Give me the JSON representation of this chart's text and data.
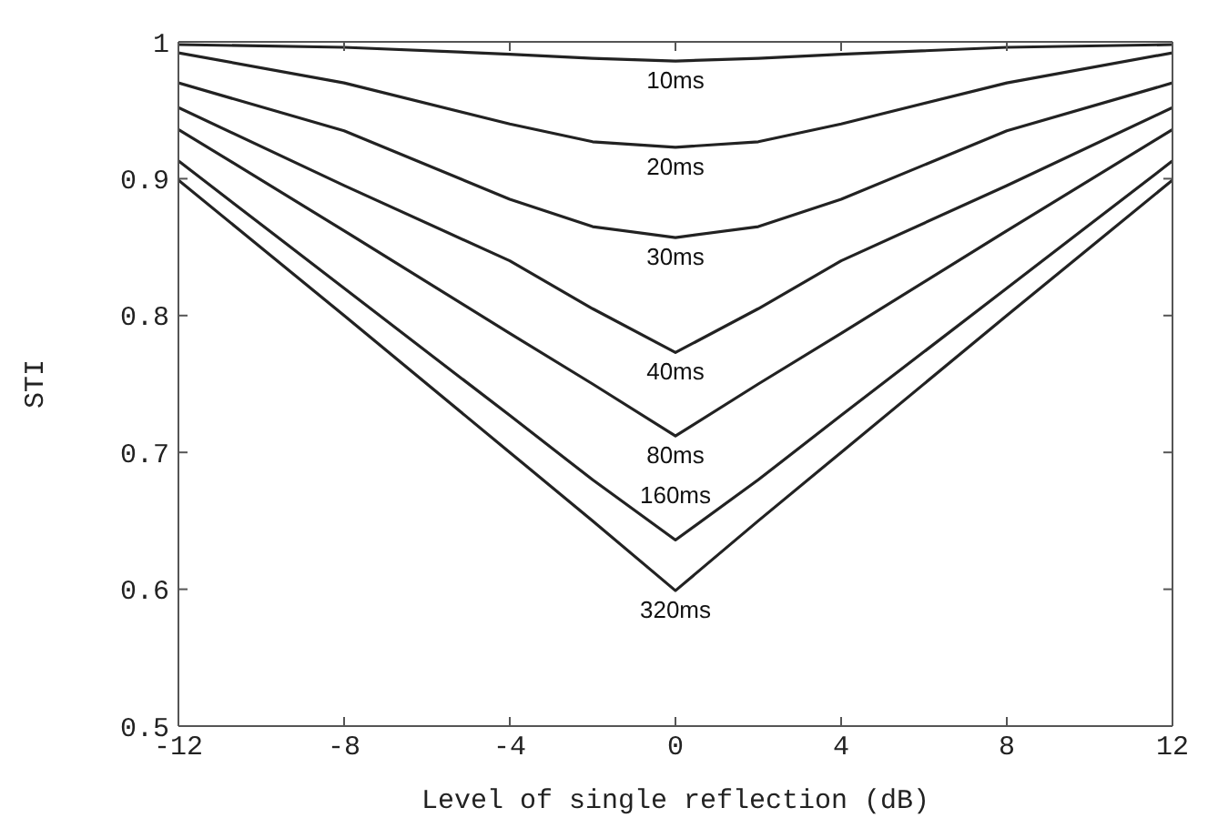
{
  "chart_data": {
    "type": "line",
    "xlabel": "Level of single reflection (dB)",
    "ylabel": "STI",
    "x": [
      -12,
      -8,
      -4,
      -2,
      0,
      2,
      4,
      8,
      12
    ],
    "xlim": [
      -12,
      12
    ],
    "xticks": [
      -12,
      -8,
      -4,
      0,
      4,
      8,
      12
    ],
    "ylim": [
      0.5,
      1
    ],
    "yticks": [
      {
        "value": 0.5,
        "label": "0.5"
      },
      {
        "value": 0.6,
        "label": "0.6"
      },
      {
        "value": 0.7,
        "label": "0.7"
      },
      {
        "value": 0.8,
        "label": "0.8"
      },
      {
        "value": 0.9,
        "label": "0.9"
      },
      {
        "value": 1,
        "label": "1"
      }
    ],
    "grid": false,
    "legend": false,
    "marker": "none",
    "line_style": "solid",
    "series": [
      {
        "name": "10ms",
        "color": "#222222",
        "values": [
          0.998,
          0.996,
          0.991,
          0.988,
          0.986,
          0.988,
          0.991,
          0.996,
          0.998
        ]
      },
      {
        "name": "20ms",
        "color": "#222222",
        "values": [
          0.992,
          0.97,
          0.94,
          0.927,
          0.923,
          0.927,
          0.94,
          0.97,
          0.992
        ]
      },
      {
        "name": "30ms",
        "color": "#222222",
        "values": [
          0.97,
          0.935,
          0.885,
          0.865,
          0.857,
          0.865,
          0.885,
          0.935,
          0.97
        ]
      },
      {
        "name": "40ms",
        "color": "#222222",
        "values": [
          0.952,
          0.895,
          0.84,
          0.805,
          0.773,
          0.805,
          0.84,
          0.895,
          0.952
        ]
      },
      {
        "name": "80ms",
        "color": "#222222",
        "values": [
          0.936,
          0.862,
          0.787,
          0.75,
          0.712,
          0.75,
          0.787,
          0.862,
          0.936
        ]
      },
      {
        "name": "160ms",
        "color": "#222222",
        "values": [
          0.913,
          0.82,
          0.727,
          0.68,
          0.636,
          0.68,
          0.727,
          0.82,
          0.913
        ]
      },
      {
        "name": "320ms",
        "color": "#222222",
        "values": [
          0.899,
          0.8,
          0.7,
          0.65,
          0.599,
          0.65,
          0.7,
          0.8,
          0.899
        ]
      }
    ]
  }
}
